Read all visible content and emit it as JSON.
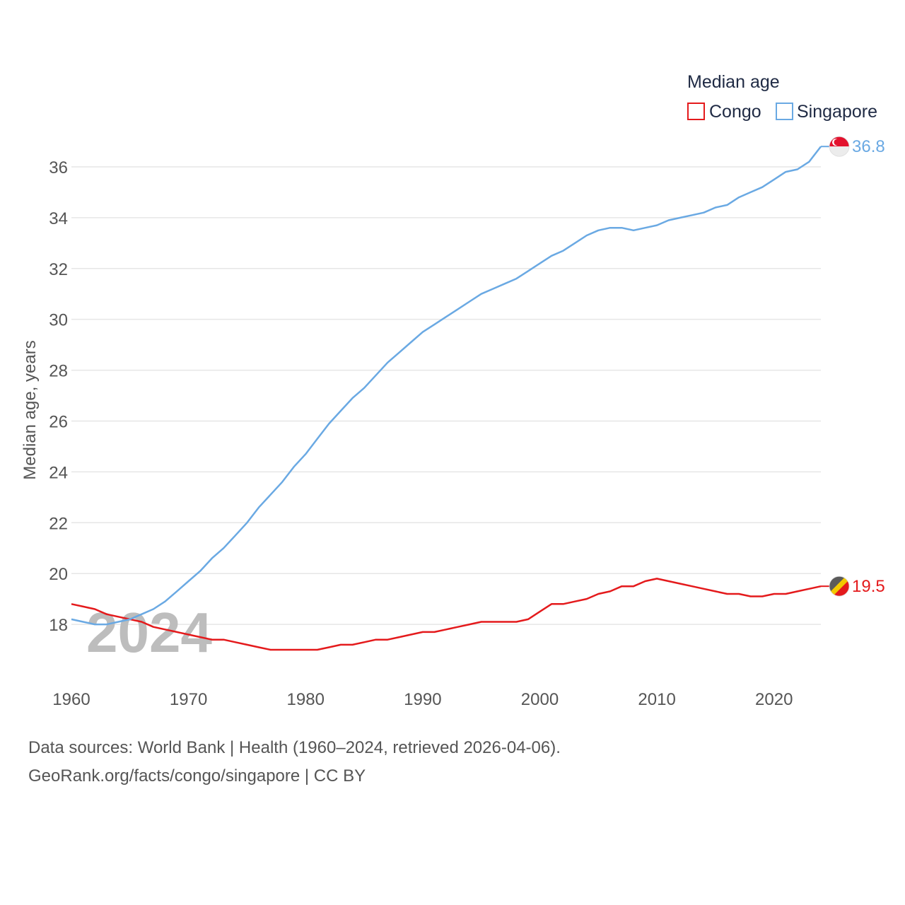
{
  "chart_data": {
    "type": "line",
    "legend_title": "Median age",
    "ylabel": "Median age, years",
    "xlabel": "",
    "xlim": [
      1960,
      2024
    ],
    "ylim": [
      16,
      37
    ],
    "x_ticks": [
      1960,
      1970,
      1980,
      1990,
      2000,
      2010,
      2020
    ],
    "y_ticks": [
      18,
      20,
      22,
      24,
      26,
      28,
      30,
      32,
      34,
      36
    ],
    "year_watermark": "2024",
    "series": [
      {
        "name": "Congo",
        "color": "#e41a1c",
        "end_label": "19.5",
        "flag_icon": "congo-flag-icon",
        "x": [
          1960,
          1961,
          1962,
          1963,
          1964,
          1965,
          1966,
          1967,
          1968,
          1969,
          1970,
          1971,
          1972,
          1973,
          1974,
          1975,
          1976,
          1977,
          1978,
          1979,
          1980,
          1981,
          1982,
          1983,
          1984,
          1985,
          1986,
          1987,
          1988,
          1989,
          1990,
          1991,
          1992,
          1993,
          1994,
          1995,
          1996,
          1997,
          1998,
          1999,
          2000,
          2001,
          2002,
          2003,
          2004,
          2005,
          2006,
          2007,
          2008,
          2009,
          2010,
          2011,
          2012,
          2013,
          2014,
          2015,
          2016,
          2017,
          2018,
          2019,
          2020,
          2021,
          2022,
          2023,
          2024
        ],
        "values": [
          18.8,
          18.7,
          18.6,
          18.4,
          18.3,
          18.2,
          18.1,
          17.9,
          17.8,
          17.7,
          17.6,
          17.5,
          17.4,
          17.4,
          17.3,
          17.2,
          17.1,
          17.0,
          17.0,
          17.0,
          17.0,
          17.0,
          17.1,
          17.2,
          17.2,
          17.3,
          17.4,
          17.4,
          17.5,
          17.6,
          17.7,
          17.7,
          17.8,
          17.9,
          18.0,
          18.1,
          18.1,
          18.1,
          18.1,
          18.2,
          18.5,
          18.8,
          18.8,
          18.9,
          19.0,
          19.2,
          19.3,
          19.5,
          19.5,
          19.7,
          19.8,
          19.7,
          19.6,
          19.5,
          19.4,
          19.3,
          19.2,
          19.2,
          19.1,
          19.1,
          19.2,
          19.2,
          19.3,
          19.4,
          19.5
        ]
      },
      {
        "name": "Singapore",
        "color": "#6aa9e3",
        "end_label": "36.8",
        "flag_icon": "singapore-flag-icon",
        "x": [
          1960,
          1961,
          1962,
          1963,
          1964,
          1965,
          1966,
          1967,
          1968,
          1969,
          1970,
          1971,
          1972,
          1973,
          1974,
          1975,
          1976,
          1977,
          1978,
          1979,
          1980,
          1981,
          1982,
          1983,
          1984,
          1985,
          1986,
          1987,
          1988,
          1989,
          1990,
          1991,
          1992,
          1993,
          1994,
          1995,
          1996,
          1997,
          1998,
          1999,
          2000,
          2001,
          2002,
          2003,
          2004,
          2005,
          2006,
          2007,
          2008,
          2009,
          2010,
          2011,
          2012,
          2013,
          2014,
          2015,
          2016,
          2017,
          2018,
          2019,
          2020,
          2021,
          2022,
          2023,
          2024
        ],
        "values": [
          18.2,
          18.1,
          18.0,
          18.0,
          18.1,
          18.2,
          18.4,
          18.6,
          18.9,
          19.3,
          19.7,
          20.1,
          20.6,
          21.0,
          21.5,
          22.0,
          22.6,
          23.1,
          23.6,
          24.2,
          24.7,
          25.3,
          25.9,
          26.4,
          26.9,
          27.3,
          27.8,
          28.3,
          28.7,
          29.1,
          29.5,
          29.8,
          30.1,
          30.4,
          30.7,
          31.0,
          31.2,
          31.4,
          31.6,
          31.9,
          32.2,
          32.5,
          32.7,
          33.0,
          33.3,
          33.5,
          33.6,
          33.6,
          33.5,
          33.6,
          33.7,
          33.9,
          34.0,
          34.1,
          34.2,
          34.4,
          34.5,
          34.8,
          35.0,
          35.2,
          35.5,
          35.8,
          35.9,
          36.2,
          36.8
        ]
      }
    ]
  },
  "footer": {
    "line1": "Data sources: World Bank | Health (1960–2024, retrieved 2026-04-06).",
    "line2": "GeoRank.org/facts/congo/singapore | CC BY"
  }
}
